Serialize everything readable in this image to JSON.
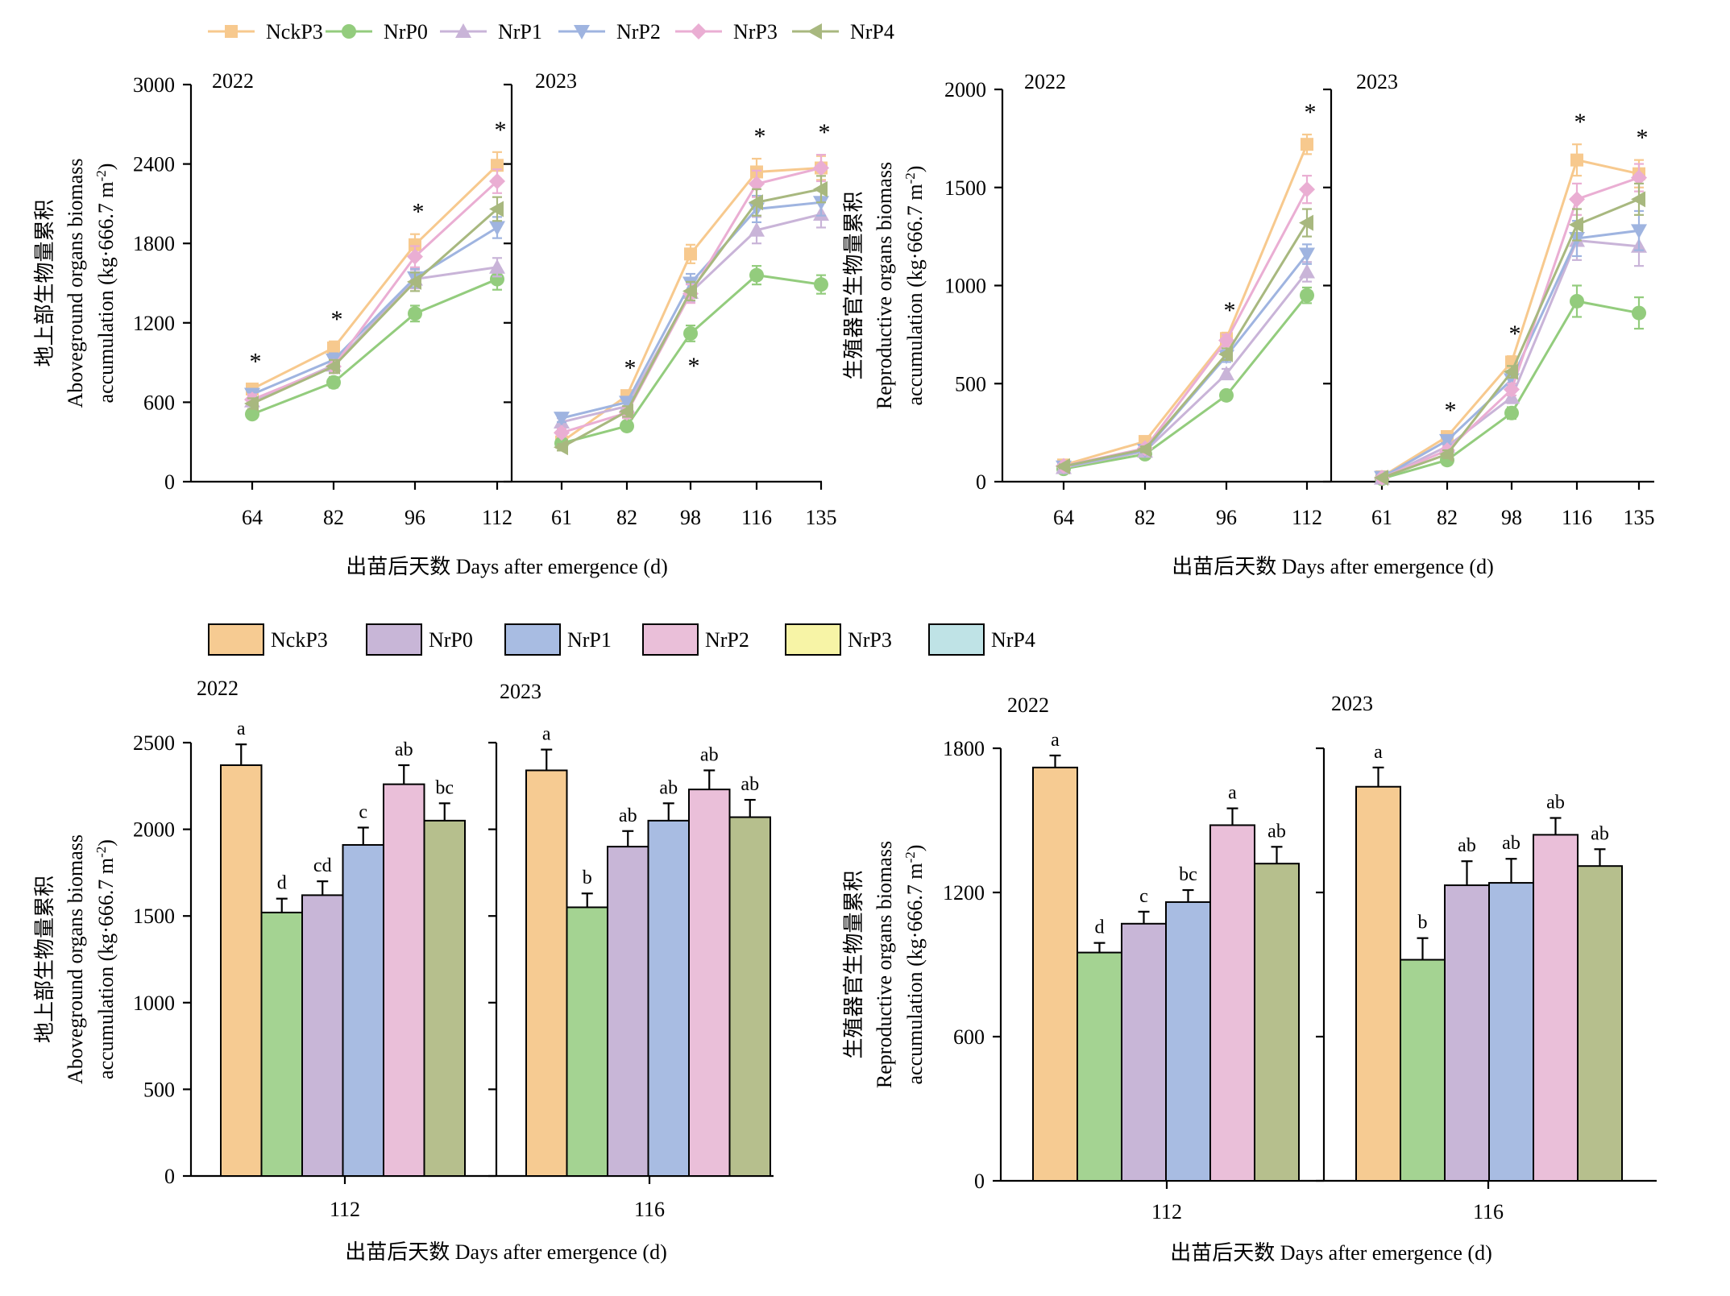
{
  "line_legend": [
    "NckP3",
    "NrP0",
    "NrP1",
    "NrP2",
    "NrP3",
    "NrP4"
  ],
  "bar_legend": [
    "NckP3",
    "NrP0",
    "NrP1",
    "NrP2",
    "NrP3",
    "NrP4"
  ],
  "colors": {
    "line": [
      "#f7c98e",
      "#93cc7d",
      "#c9b4d8",
      "#9fb4e0",
      "#eaaed3",
      "#a8b87f"
    ],
    "bar": [
      "#f6cb92",
      "#a4d392",
      "#c8b6d7",
      "#a8bce2",
      "#eabfd9",
      "#b6bf8d"
    ],
    "bar_legend_swatch": [
      "#f6cb92",
      "#c8b6d7",
      "#a8bce2",
      "#eabfd9",
      "#f7f4a6",
      "#bfe3e6"
    ]
  },
  "markers": [
    "square",
    "circle",
    "triangle-up",
    "triangle-down",
    "diamond",
    "triangle-left"
  ],
  "chart_data": [
    {
      "type": "line",
      "panel": "top-left",
      "ylabel_cn": "地上部生物量累积",
      "ylabel_en1": "Aboveground organs biomass",
      "ylabel_en2": "accumulation (kg·666.7 m",
      "ylabel_sup": "-2",
      "ylabel_end": ")",
      "xlabel": "出苗后天数 Days after emergence (d)",
      "ylim": [
        0,
        3000
      ],
      "yticks": [
        0,
        600,
        1200,
        1800,
        2400,
        3000
      ],
      "facets": [
        {
          "year": "2022",
          "x": [
            "64",
            "82",
            "96",
            "112"
          ],
          "series": [
            {
              "name": "NckP3",
              "values": [
                700,
                1010,
                1790,
                2390
              ],
              "err": [
                40,
                50,
                80,
                100
              ]
            },
            {
              "name": "NrP0",
              "values": [
                510,
                750,
                1270,
                1530
              ],
              "err": [
                30,
                40,
                60,
                80
              ]
            },
            {
              "name": "NrP1",
              "values": [
                610,
                880,
                1530,
                1620
              ],
              "err": [
                40,
                50,
                70,
                70
              ]
            },
            {
              "name": "NrP2",
              "values": [
                660,
                920,
                1540,
                1920
              ],
              "err": [
                40,
                50,
                70,
                80
              ]
            },
            {
              "name": "NrP3",
              "values": [
                620,
                870,
                1700,
                2270
              ],
              "err": [
                40,
                50,
                80,
                90
              ]
            },
            {
              "name": "NrP4",
              "values": [
                590,
                870,
                1510,
                2060
              ],
              "err": [
                40,
                50,
                70,
                90
              ]
            }
          ],
          "stars": [
            true,
            true,
            true,
            true
          ]
        },
        {
          "year": "2023",
          "x": [
            "61",
            "82",
            "98",
            "116",
            "135"
          ],
          "series": [
            {
              "name": "NckP3",
              "values": [
                300,
                650,
                1720,
                2340,
                2370
              ],
              "err": [
                25,
                40,
                70,
                100,
                90
              ]
            },
            {
              "name": "NrP0",
              "values": [
                290,
                420,
                1120,
                1560,
                1490
              ],
              "err": [
                25,
                30,
                60,
                70,
                70
              ]
            },
            {
              "name": "NrP1",
              "values": [
                450,
                570,
                1430,
                1900,
                2020
              ],
              "err": [
                30,
                40,
                70,
                100,
                100
              ]
            },
            {
              "name": "NrP2",
              "values": [
                480,
                600,
                1500,
                2060,
                2110
              ],
              "err": [
                30,
                40,
                70,
                100,
                100
              ]
            },
            {
              "name": "NrP3",
              "values": [
                370,
                520,
                1420,
                2250,
                2370
              ],
              "err": [
                30,
                40,
                70,
                100,
                100
              ]
            },
            {
              "name": "NrP4",
              "values": [
                260,
                530,
                1440,
                2110,
                2210
              ],
              "err": [
                25,
                40,
                70,
                100,
                100
              ]
            }
          ],
          "stars": [
            false,
            true,
            true,
            true,
            true
          ],
          "star_pos": [
            "",
            "above",
            "below",
            "above",
            "above"
          ]
        }
      ]
    },
    {
      "type": "line",
      "panel": "top-right",
      "ylabel_cn": "生殖器官生物量累积",
      "ylabel_en1": "Reproductive organs biomass",
      "ylabel_en2": "accumulation (kg·666.7 m",
      "ylabel_sup": "-2",
      "ylabel_end": ")",
      "xlabel": "出苗后天数 Days after emergence (d)",
      "ylim": [
        0,
        2000
      ],
      "yticks": [
        0,
        500,
        1000,
        1500,
        2000
      ],
      "facets": [
        {
          "year": "2022",
          "x": [
            "64",
            "82",
            "96",
            "112"
          ],
          "series": [
            {
              "name": "NckP3",
              "values": [
                85,
                205,
                730,
                1720
              ],
              "err": [
                10,
                15,
                30,
                50
              ]
            },
            {
              "name": "NrP0",
              "values": [
                65,
                140,
                440,
                950
              ],
              "err": [
                8,
                12,
                20,
                40
              ]
            },
            {
              "name": "NrP1",
              "values": [
                72,
                155,
                550,
                1070
              ],
              "err": [
                8,
                12,
                25,
                50
              ]
            },
            {
              "name": "NrP2",
              "values": [
                75,
                160,
                640,
                1160
              ],
              "err": [
                8,
                12,
                30,
                50
              ]
            },
            {
              "name": "NrP3",
              "values": [
                80,
                170,
                720,
                1490
              ],
              "err": [
                10,
                15,
                30,
                70
              ]
            },
            {
              "name": "NrP4",
              "values": [
                78,
                165,
                650,
                1320
              ],
              "err": [
                10,
                15,
                30,
                70
              ]
            }
          ],
          "stars": [
            false,
            false,
            true,
            true
          ]
        },
        {
          "year": "2023",
          "x": [
            "61",
            "82",
            "98",
            "116",
            "135"
          ],
          "series": [
            {
              "name": "NckP3",
              "values": [
                25,
                230,
                610,
                1640,
                1570
              ],
              "err": [
                5,
                20,
                30,
                80,
                70
              ]
            },
            {
              "name": "NrP0",
              "values": [
                15,
                110,
                350,
                920,
                860
              ],
              "err": [
                5,
                15,
                30,
                80,
                80
              ]
            },
            {
              "name": "NrP1",
              "values": [
                18,
                180,
                430,
                1230,
                1200
              ],
              "err": [
                5,
                20,
                30,
                100,
                100
              ]
            },
            {
              "name": "NrP2",
              "values": [
                22,
                210,
                520,
                1240,
                1280
              ],
              "err": [
                5,
                20,
                30,
                90,
                100
              ]
            },
            {
              "name": "NrP3",
              "values": [
                20,
                160,
                470,
                1440,
                1550
              ],
              "err": [
                5,
                20,
                30,
                80,
                70
              ]
            },
            {
              "name": "NrP4",
              "values": [
                20,
                140,
                560,
                1310,
                1440
              ],
              "err": [
                5,
                20,
                30,
                80,
                80
              ]
            }
          ],
          "stars": [
            false,
            true,
            true,
            true,
            true
          ]
        }
      ]
    },
    {
      "type": "bar",
      "panel": "bottom-left",
      "ylabel_cn": "地上部生物量累积",
      "ylabel_en1": "Aboveground organs biomass",
      "ylabel_en2": "accumulation (kg·666.7 m",
      "ylabel_sup": "-2",
      "ylabel_end": ")",
      "xlabel": "出苗后天数 Days after emergence (d)",
      "ylim": [
        0,
        2500
      ],
      "yticks": [
        0,
        500,
        1000,
        1500,
        2000,
        2500
      ],
      "facets": [
        {
          "year": "2022",
          "category": "112",
          "values": [
            2370,
            1520,
            1620,
            1910,
            2260,
            2050
          ],
          "err": [
            120,
            80,
            80,
            100,
            110,
            100
          ],
          "letters": [
            "a",
            "d",
            "cd",
            "c",
            "ab",
            "bc"
          ]
        },
        {
          "year": "2023",
          "category": "116",
          "values": [
            2340,
            1550,
            1900,
            2050,
            2230,
            2070
          ],
          "err": [
            120,
            80,
            90,
            100,
            110,
            100
          ],
          "letters": [
            "a",
            "b",
            "ab",
            "ab",
            "ab",
            "ab"
          ]
        }
      ]
    },
    {
      "type": "bar",
      "panel": "bottom-right",
      "ylabel_cn": "生殖器官生物量累积",
      "ylabel_en1": "Reproductive organs biomass",
      "ylabel_en2": "accumulation (kg·666.7 m",
      "ylabel_sup": "-2",
      "ylabel_end": ")",
      "xlabel": "出苗后天数 Days after emergence (d)",
      "ylim": [
        0,
        1800
      ],
      "yticks": [
        0,
        600,
        1200,
        1800
      ],
      "facets": [
        {
          "year": "2022",
          "category": "112",
          "values": [
            1720,
            950,
            1070,
            1160,
            1480,
            1320
          ],
          "err": [
            50,
            40,
            50,
            50,
            70,
            70
          ],
          "letters": [
            "a",
            "d",
            "c",
            "bc",
            "a",
            "ab"
          ]
        },
        {
          "year": "2023",
          "category": "116",
          "values": [
            1640,
            920,
            1230,
            1240,
            1440,
            1310
          ],
          "err": [
            80,
            90,
            100,
            100,
            70,
            70
          ],
          "letters": [
            "a",
            "b",
            "ab",
            "ab",
            "ab",
            "ab"
          ]
        }
      ]
    }
  ]
}
